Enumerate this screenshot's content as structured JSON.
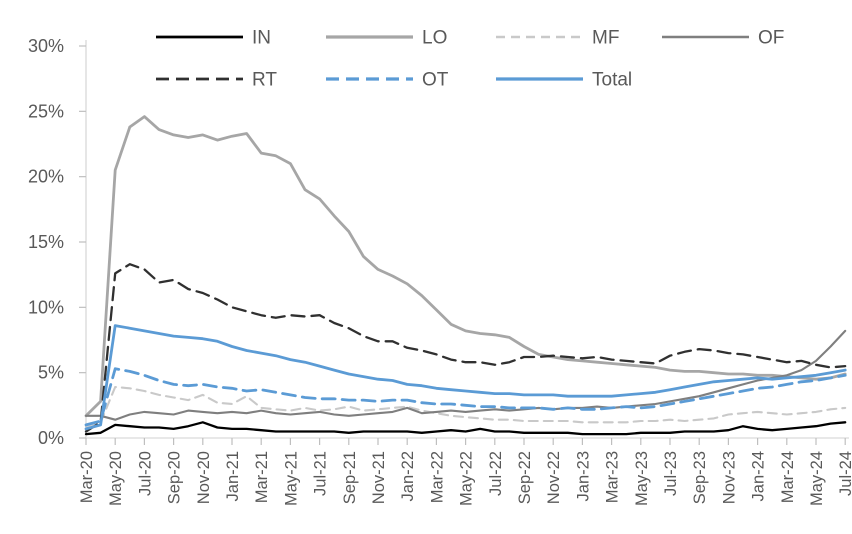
{
  "chart_data": {
    "type": "line",
    "title": "",
    "x_axis": {
      "label": "",
      "months_per_tick": 2,
      "points_count": 53,
      "tick_labels": [
        "Mar-20",
        "May-20",
        "Jul-20",
        "Sep-20",
        "Nov-20",
        "Jan-21",
        "Mar-21",
        "May-21",
        "Jul-21",
        "Sep-21",
        "Nov-21",
        "Jan-22",
        "Mar-22",
        "May-22",
        "Jul-22",
        "Sep-22",
        "Nov-22",
        "Jan-23",
        "Mar-23",
        "May-23",
        "Jul-23",
        "Sep-23",
        "Nov-23",
        "Jan-24",
        "Mar-24",
        "May-24",
        "Jul-24"
      ]
    },
    "y_axis": {
      "label": "",
      "min": 0,
      "max": 30,
      "step": 5,
      "tick_labels": [
        "0%",
        "5%",
        "10%",
        "15%",
        "20%",
        "25%",
        "30%"
      ]
    },
    "legend": {
      "rows": [
        [
          "IN",
          "LO",
          "MF",
          "OF"
        ],
        [
          "RT",
          "OT",
          "Total"
        ]
      ],
      "position": "top"
    },
    "style": {
      "axis_color": "#d9d9d9",
      "tick_color": "#bfbfbf",
      "text_color": "#595959",
      "blue": "#5b9bd5",
      "background": "#ffffff"
    },
    "series": [
      {
        "name": "IN",
        "color": "#000000",
        "style": "solid",
        "width": 2.3,
        "values": [
          0.3,
          0.4,
          1.0,
          0.9,
          0.8,
          0.8,
          0.7,
          0.9,
          1.2,
          0.8,
          0.7,
          0.7,
          0.6,
          0.5,
          0.5,
          0.5,
          0.5,
          0.5,
          0.4,
          0.5,
          0.5,
          0.5,
          0.5,
          0.4,
          0.5,
          0.6,
          0.5,
          0.7,
          0.5,
          0.5,
          0.4,
          0.4,
          0.4,
          0.4,
          0.3,
          0.3,
          0.3,
          0.3,
          0.4,
          0.4,
          0.4,
          0.5,
          0.5,
          0.5,
          0.6,
          0.9,
          0.7,
          0.6,
          0.7,
          0.8,
          0.9,
          1.1,
          1.2
        ]
      },
      {
        "name": "LO",
        "color": "#a6a6a6",
        "style": "solid",
        "width": 2.8,
        "values": [
          1.7,
          2.8,
          20.5,
          23.8,
          24.6,
          23.6,
          23.2,
          23.0,
          23.2,
          22.8,
          23.1,
          23.3,
          21.8,
          21.6,
          21.0,
          19.0,
          18.3,
          17.0,
          15.8,
          13.9,
          12.9,
          12.4,
          11.8,
          10.9,
          9.8,
          8.7,
          8.2,
          8.0,
          7.9,
          7.7,
          7.0,
          6.4,
          6.2,
          6.0,
          5.9,
          5.8,
          5.7,
          5.6,
          5.5,
          5.4,
          5.2,
          5.1,
          5.1,
          5.0,
          4.9,
          4.9,
          4.8,
          4.8,
          4.7,
          4.6,
          4.5,
          4.6,
          4.9
        ]
      },
      {
        "name": "MF",
        "color": "#c9c9c9",
        "style": "dashed",
        "width": 2.1,
        "values": [
          0.9,
          1.2,
          3.9,
          3.8,
          3.6,
          3.3,
          3.1,
          2.9,
          3.3,
          2.7,
          2.6,
          3.2,
          2.3,
          2.2,
          2.1,
          2.3,
          2.1,
          2.2,
          2.4,
          2.1,
          2.2,
          2.3,
          2.4,
          2.1,
          1.9,
          1.7,
          1.6,
          1.5,
          1.4,
          1.4,
          1.3,
          1.3,
          1.3,
          1.3,
          1.2,
          1.2,
          1.2,
          1.2,
          1.3,
          1.3,
          1.4,
          1.3,
          1.4,
          1.5,
          1.8,
          1.9,
          2.0,
          1.9,
          1.8,
          1.9,
          2.0,
          2.2,
          2.3
        ]
      },
      {
        "name": "OF",
        "color": "#7f7f7f",
        "style": "solid",
        "width": 2.1,
        "values": [
          1.7,
          1.7,
          1.4,
          1.8,
          2.0,
          1.9,
          1.8,
          2.1,
          2.0,
          1.9,
          2.0,
          1.9,
          2.1,
          1.9,
          1.8,
          1.9,
          2.0,
          1.8,
          1.7,
          1.8,
          1.9,
          2.0,
          2.3,
          1.9,
          2.0,
          2.1,
          2.0,
          2.1,
          2.2,
          2.1,
          2.2,
          2.3,
          2.2,
          2.3,
          2.3,
          2.4,
          2.3,
          2.4,
          2.5,
          2.6,
          2.8,
          3.0,
          3.2,
          3.5,
          3.8,
          4.1,
          4.4,
          4.6,
          4.8,
          5.2,
          5.9,
          7.0,
          8.2
        ]
      },
      {
        "name": "RT",
        "color": "#303030",
        "style": "dashed",
        "width": 2.3,
        "values": [
          0.5,
          1.2,
          12.6,
          13.3,
          12.9,
          11.9,
          12.1,
          11.4,
          11.1,
          10.6,
          10.0,
          9.7,
          9.4,
          9.2,
          9.4,
          9.3,
          9.4,
          8.8,
          8.4,
          7.8,
          7.4,
          7.4,
          6.9,
          6.7,
          6.4,
          6.0,
          5.8,
          5.8,
          5.6,
          5.8,
          6.2,
          6.2,
          6.3,
          6.2,
          6.1,
          6.2,
          6.0,
          5.9,
          5.8,
          5.7,
          6.3,
          6.6,
          6.8,
          6.7,
          6.5,
          6.4,
          6.2,
          6.0,
          5.8,
          5.9,
          5.6,
          5.4,
          5.5
        ]
      },
      {
        "name": "OT",
        "color": "#5b9bd5",
        "style": "dashed",
        "width": 2.8,
        "values": [
          1.0,
          1.3,
          5.3,
          5.1,
          4.8,
          4.4,
          4.1,
          4.0,
          4.1,
          3.9,
          3.8,
          3.6,
          3.7,
          3.5,
          3.3,
          3.1,
          3.0,
          3.0,
          2.9,
          2.9,
          2.8,
          2.9,
          2.9,
          2.7,
          2.6,
          2.6,
          2.5,
          2.4,
          2.4,
          2.3,
          2.3,
          2.3,
          2.2,
          2.3,
          2.2,
          2.2,
          2.3,
          2.4,
          2.3,
          2.4,
          2.6,
          2.8,
          3.0,
          3.2,
          3.4,
          3.6,
          3.8,
          3.9,
          4.1,
          4.3,
          4.4,
          4.6,
          4.8
        ]
      },
      {
        "name": "Total",
        "color": "#5b9bd5",
        "style": "solid",
        "width": 2.8,
        "values": [
          0.7,
          1.0,
          8.6,
          8.4,
          8.2,
          8.0,
          7.8,
          7.7,
          7.6,
          7.4,
          7.0,
          6.7,
          6.5,
          6.3,
          6.0,
          5.8,
          5.5,
          5.2,
          4.9,
          4.7,
          4.5,
          4.4,
          4.1,
          4.0,
          3.8,
          3.7,
          3.6,
          3.5,
          3.4,
          3.4,
          3.3,
          3.3,
          3.3,
          3.2,
          3.2,
          3.2,
          3.2,
          3.3,
          3.4,
          3.5,
          3.7,
          3.9,
          4.1,
          4.3,
          4.4,
          4.5,
          4.6,
          4.5,
          4.6,
          4.7,
          4.8,
          5.0,
          5.2
        ]
      }
    ]
  }
}
